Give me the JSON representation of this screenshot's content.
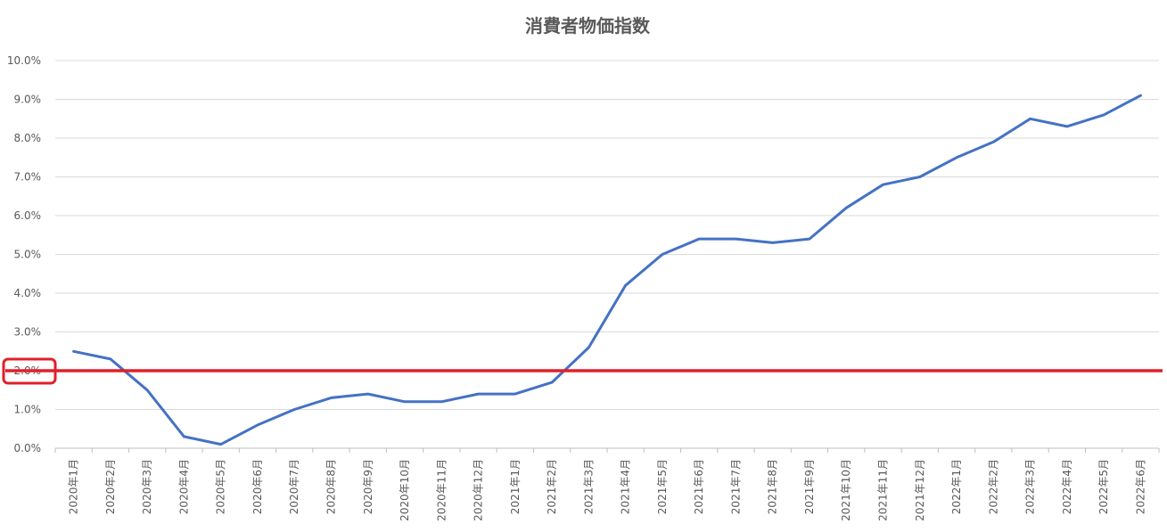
{
  "chart_data": {
    "type": "line",
    "title": "消費者物価指数",
    "xlabel": "",
    "ylabel": "",
    "categories": [
      "2020年1月",
      "2020年2月",
      "2020年3月",
      "2020年4月",
      "2020年5月",
      "2020年6月",
      "2020年7月",
      "2020年8月",
      "2020年9月",
      "2020年10月",
      "2020年11月",
      "2020年12月",
      "2021年1月",
      "2021年2月",
      "2021年3月",
      "2021年4月",
      "2021年5月",
      "2021年6月",
      "2021年7月",
      "2021年8月",
      "2021年9月",
      "2021年10月",
      "2021年11月",
      "2021年12月",
      "2022年1月",
      "2022年2月",
      "2022年3月",
      "2022年4月",
      "2022年5月",
      "2022年6月"
    ],
    "series": [
      {
        "name": "",
        "color": "#4472c4",
        "values": [
          2.5,
          2.3,
          1.5,
          0.3,
          0.1,
          0.6,
          1.0,
          1.3,
          1.4,
          1.2,
          1.2,
          1.4,
          1.4,
          1.7,
          2.6,
          4.2,
          5.0,
          5.4,
          5.4,
          5.3,
          5.4,
          6.2,
          6.8,
          7.0,
          7.5,
          7.9,
          8.5,
          8.3,
          8.6,
          9.1
        ]
      }
    ],
    "reference_line": {
      "value": 2.0,
      "color": "#e0202a"
    },
    "highlight_tick": {
      "label": "2.0%",
      "color": "#e0202a"
    },
    "ylim": [
      0,
      10
    ],
    "yticks": [
      "0.0%",
      "1.0%",
      "2.0%",
      "3.0%",
      "4.0%",
      "5.0%",
      "6.0%",
      "7.0%",
      "8.0%",
      "9.0%",
      "10.0%"
    ],
    "ytick_values": [
      0,
      1,
      2,
      3,
      4,
      5,
      6,
      7,
      8,
      9,
      10
    ],
    "grid": true,
    "legend": "none"
  }
}
